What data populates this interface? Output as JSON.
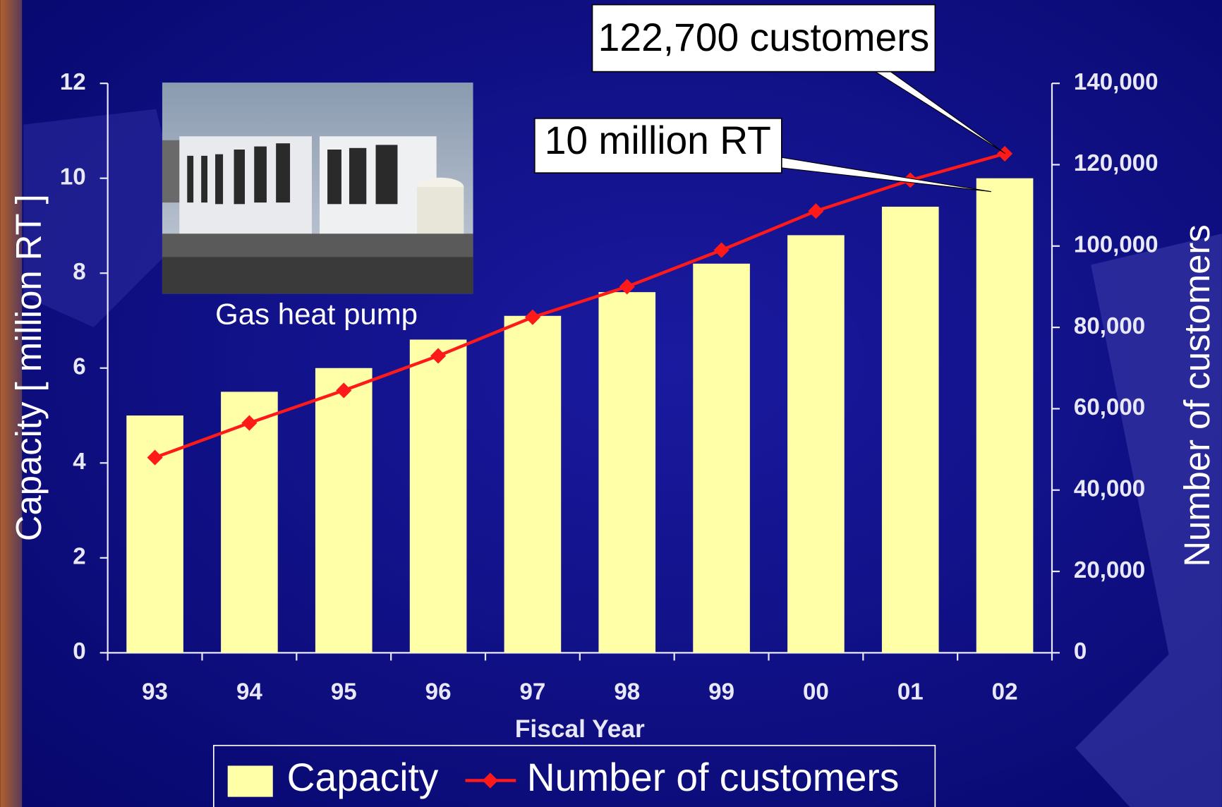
{
  "chart_data": {
    "type": "bar_line",
    "categories": [
      "93",
      "94",
      "95",
      "96",
      "97",
      "98",
      "99",
      "00",
      "01",
      "02"
    ],
    "series": [
      {
        "name": "Capacity",
        "type": "bar",
        "color": "#ffffa8",
        "values": [
          5.0,
          5.5,
          6.0,
          6.6,
          7.1,
          7.6,
          8.2,
          8.8,
          9.4,
          10.0
        ]
      },
      {
        "name": "Number of customers",
        "type": "line",
        "axis": "y2",
        "color": "#ff1a1a",
        "values": [
          48000,
          56500,
          64500,
          73000,
          82500,
          90000,
          99000,
          108600,
          116200,
          122700
        ]
      }
    ],
    "ylim": [
      0,
      12
    ],
    "yticks": [
      0,
      2,
      4,
      6,
      8,
      10,
      12
    ],
    "y2lim": [
      0,
      140000
    ],
    "y2ticks": [
      0,
      {
        "value": 20000,
        "label": "20,000"
      },
      {
        "value": 40000,
        "label": "40,000"
      },
      {
        "value": 60000,
        "label": "60,000"
      },
      {
        "value": 80000,
        "label": "80,000"
      },
      {
        "value": 100000,
        "label": "100,000"
      },
      {
        "value": 120000,
        "label": "120,000"
      },
      {
        "value": 140000,
        "label": "140,000"
      }
    ],
    "ylabel": "Capacity [ million RT ]",
    "y2label": "Number of customers",
    "xlabel": "Fiscal Year",
    "annotations": [
      "122,700 customers",
      "10 million RT"
    ],
    "photo_caption": "Gas heat pump",
    "legend": "bottom"
  }
}
